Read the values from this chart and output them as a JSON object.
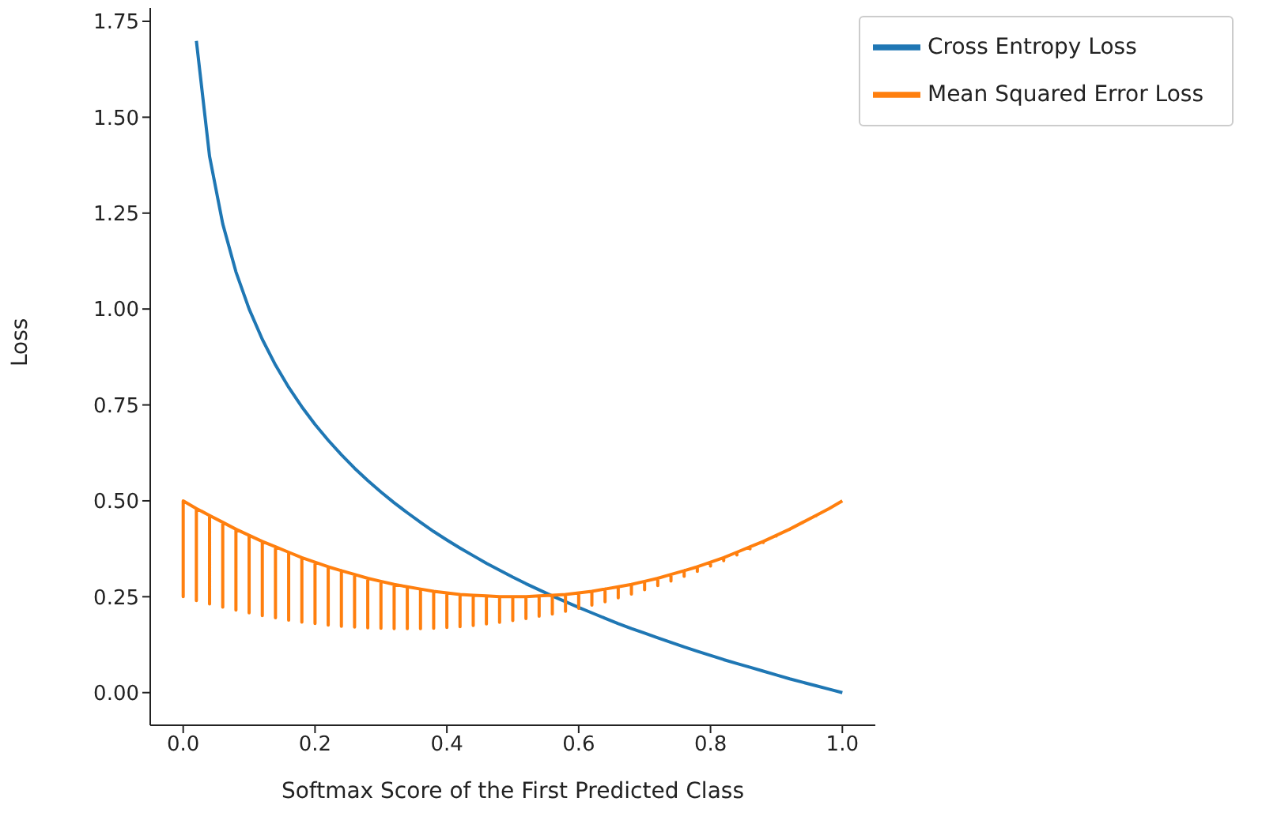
{
  "chart_data": {
    "type": "line",
    "xlabel": "Softmax Score of the First Predicted Class",
    "ylabel": "Loss",
    "xlim": [
      -0.05,
      1.05
    ],
    "ylim": [
      -0.085,
      1.785
    ],
    "xticks": [
      {
        "value": 0,
        "label": "0.0"
      },
      {
        "value": 0.2,
        "label": "0.2"
      },
      {
        "value": 0.4,
        "label": "0.4"
      },
      {
        "value": 0.6,
        "label": "0.6"
      },
      {
        "value": 0.8,
        "label": "0.8"
      },
      {
        "value": 1,
        "label": "1.0"
      }
    ],
    "yticks": [
      {
        "value": 0,
        "label": "0.00"
      },
      {
        "value": 0.25,
        "label": "0.25"
      },
      {
        "value": 0.5,
        "label": "0.50"
      },
      {
        "value": 0.75,
        "label": "0.75"
      },
      {
        "value": 1,
        "label": "1.00"
      },
      {
        "value": 1.25,
        "label": "1.25"
      },
      {
        "value": 1.5,
        "label": "1.50"
      },
      {
        "value": 1.75,
        "label": "1.75"
      }
    ],
    "legend": "top right",
    "grid": false,
    "marker": "none",
    "line_style": "solid",
    "series": [
      {
        "name": "Cross Entropy Loss",
        "color": "#1f77b4",
        "x": [
          0.02,
          0.04,
          0.06,
          0.08,
          0.1,
          0.12,
          0.14,
          0.16,
          0.18,
          0.2,
          0.22,
          0.24,
          0.26,
          0.28,
          0.3,
          0.32,
          0.34,
          0.36,
          0.38,
          0.4,
          0.42,
          0.44,
          0.46,
          0.48,
          0.5,
          0.52,
          0.54,
          0.56,
          0.58,
          0.6,
          0.62,
          0.64,
          0.66,
          0.68,
          0.7,
          0.72,
          0.74,
          0.76,
          0.78,
          0.8,
          0.82,
          0.84,
          0.86,
          0.88,
          0.9,
          0.92,
          0.94,
          0.96,
          0.98,
          1
        ],
        "values": [
          1.699,
          1.398,
          1.222,
          1.097,
          1.0,
          0.921,
          0.854,
          0.796,
          0.745,
          0.699,
          0.658,
          0.62,
          0.585,
          0.553,
          0.523,
          0.495,
          0.469,
          0.444,
          0.42,
          0.398,
          0.377,
          0.357,
          0.337,
          0.319,
          0.301,
          0.284,
          0.268,
          0.252,
          0.237,
          0.222,
          0.208,
          0.194,
          0.18,
          0.167,
          0.155,
          0.143,
          0.131,
          0.119,
          0.108,
          0.097,
          0.086,
          0.076,
          0.066,
          0.056,
          0.046,
          0.036,
          0.027,
          0.018,
          0.009,
          0
        ]
      },
      {
        "name": "Mean Squared Error Loss",
        "color": "#ff7f0e",
        "x": [
          0,
          0,
          0,
          0.02,
          0.02,
          0.02,
          0.04,
          0.04,
          0.04,
          0.06,
          0.06,
          0.06,
          0.08,
          0.08,
          0.08,
          0.1,
          0.1,
          0.1,
          0.12,
          0.12,
          0.12,
          0.14,
          0.14,
          0.14,
          0.16,
          0.16,
          0.16,
          0.18,
          0.18,
          0.18,
          0.2,
          0.2,
          0.2,
          0.22,
          0.22,
          0.22,
          0.24,
          0.24,
          0.24,
          0.26,
          0.26,
          0.26,
          0.28,
          0.28,
          0.28,
          0.3,
          0.3,
          0.3,
          0.32,
          0.32,
          0.32,
          0.34,
          0.34,
          0.34,
          0.36,
          0.36,
          0.36,
          0.38,
          0.38,
          0.38,
          0.4,
          0.4,
          0.4,
          0.42,
          0.42,
          0.42,
          0.44,
          0.44,
          0.44,
          0.46,
          0.46,
          0.46,
          0.48,
          0.48,
          0.48,
          0.5,
          0.5,
          0.5,
          0.52,
          0.52,
          0.52,
          0.54,
          0.54,
          0.54,
          0.56,
          0.56,
          0.56,
          0.58,
          0.58,
          0.58,
          0.6,
          0.6,
          0.6,
          0.62,
          0.62,
          0.62,
          0.64,
          0.64,
          0.64,
          0.66,
          0.66,
          0.66,
          0.68,
          0.68,
          0.68,
          0.7,
          0.7,
          0.7,
          0.72,
          0.72,
          0.72,
          0.74,
          0.74,
          0.74,
          0.76,
          0.76,
          0.76,
          0.78,
          0.78,
          0.78,
          0.8,
          0.8,
          0.8,
          0.82,
          0.82,
          0.82,
          0.84,
          0.84,
          0.84,
          0.86,
          0.86,
          0.86,
          0.88,
          0.88,
          0.88,
          0.9,
          0.9,
          0.9,
          0.92,
          0.92,
          0.92,
          0.94,
          0.94,
          0.94,
          0.96,
          0.96,
          0.96,
          0.98,
          0.98,
          0.98,
          1,
          1,
          1
        ],
        "values": [
          0.5,
          0.25,
          0.5,
          0.48,
          0.24,
          0.48,
          0.462,
          0.231,
          0.462,
          0.444,
          0.223,
          0.444,
          0.426,
          0.215,
          0.426,
          0.41,
          0.208,
          0.41,
          0.394,
          0.201,
          0.394,
          0.38,
          0.195,
          0.38,
          0.366,
          0.189,
          0.366,
          0.352,
          0.184,
          0.352,
          0.34,
          0.18,
          0.34,
          0.328,
          0.176,
          0.328,
          0.318,
          0.173,
          0.318,
          0.308,
          0.171,
          0.308,
          0.298,
          0.169,
          0.298,
          0.29,
          0.168,
          0.29,
          0.282,
          0.167,
          0.282,
          0.276,
          0.167,
          0.276,
          0.27,
          0.167,
          0.27,
          0.264,
          0.168,
          0.264,
          0.26,
          0.17,
          0.26,
          0.256,
          0.172,
          0.256,
          0.254,
          0.175,
          0.254,
          0.252,
          0.179,
          0.252,
          0.25,
          0.183,
          0.25,
          0.25,
          0.188,
          0.25,
          0.25,
          0.193,
          0.25,
          0.252,
          0.199,
          0.252,
          0.254,
          0.205,
          0.254,
          0.256,
          0.212,
          0.256,
          0.26,
          0.22,
          0.26,
          0.264,
          0.228,
          0.264,
          0.27,
          0.237,
          0.27,
          0.276,
          0.247,
          0.276,
          0.282,
          0.257,
          0.282,
          0.29,
          0.268,
          0.29,
          0.298,
          0.279,
          0.298,
          0.308,
          0.291,
          0.308,
          0.318,
          0.303,
          0.318,
          0.328,
          0.316,
          0.328,
          0.34,
          0.33,
          0.34,
          0.352,
          0.344,
          0.352,
          0.366,
          0.359,
          0.366,
          0.38,
          0.375,
          0.38,
          0.394,
          0.391,
          0.394,
          0.41,
          0.408,
          0.41,
          0.426,
          0.425,
          0.426,
          0.444,
          0.443,
          0.444,
          0.462,
          0.461,
          0.462,
          0.48,
          0.48,
          0.48,
          0.5,
          0.5,
          0.5
        ]
      }
    ]
  }
}
